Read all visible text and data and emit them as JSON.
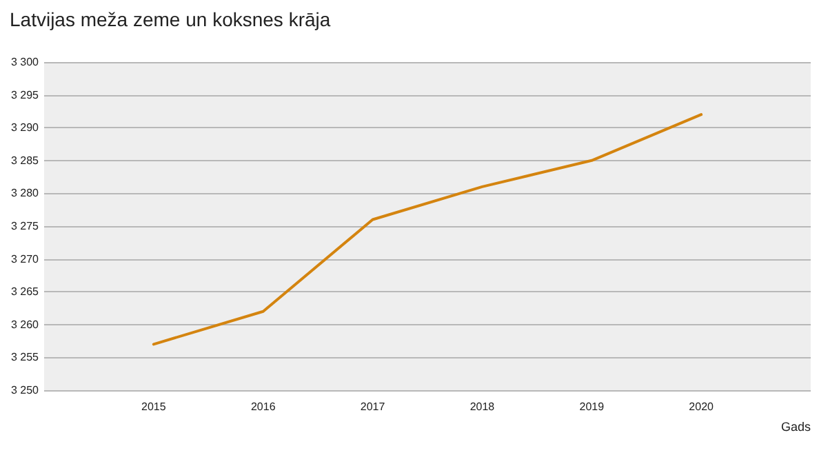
{
  "chart_data": {
    "type": "line",
    "title": "Latvijas meža zeme un koksnes krāja",
    "xlabel": "Gads",
    "x": [
      2015,
      2016,
      2017,
      2018,
      2019,
      2020
    ],
    "series": [
      {
        "color": "#d4840f",
        "values": [
          3257,
          3262,
          3276,
          3281,
          3285,
          3292
        ]
      }
    ],
    "xlim": [
      2014,
      2021
    ],
    "xticks": [
      2015,
      2016,
      2017,
      2018,
      2019,
      2020
    ],
    "ylim": [
      3250,
      3300
    ],
    "yticks": [
      {
        "value": 3250,
        "label": "3 250"
      },
      {
        "value": 3255,
        "label": "3 255"
      },
      {
        "value": 3260,
        "label": "3 260"
      },
      {
        "value": 3265,
        "label": "3 265"
      },
      {
        "value": 3270,
        "label": "3 270"
      },
      {
        "value": 3275,
        "label": "3 275"
      },
      {
        "value": 3280,
        "label": "3 280"
      },
      {
        "value": 3285,
        "label": "3 285"
      },
      {
        "value": 3290,
        "label": "3 290"
      },
      {
        "value": 3295,
        "label": "3 295"
      },
      {
        "value": 3300,
        "label": "3 300"
      }
    ],
    "grid": "y",
    "marker": "none",
    "line_style": "solid"
  }
}
